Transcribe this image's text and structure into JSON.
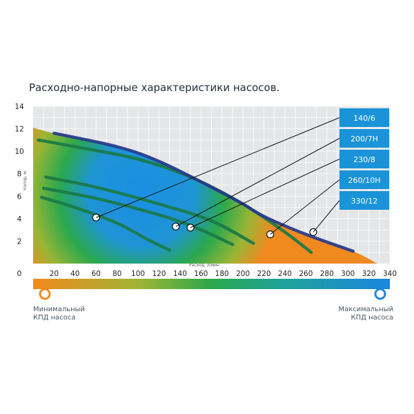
{
  "chart_data": {
    "type": "line",
    "title": "Расходно-напорные характеристики насосов.",
    "xlabel": "Расход, л/мин",
    "ylabel": "Напор, м",
    "xlim": [
      0,
      340
    ],
    "ylim": [
      0,
      14
    ],
    "x_ticks": [
      "0",
      "20",
      "40",
      "60",
      "80",
      "100",
      "120",
      "140",
      "160",
      "180",
      "200",
      "220",
      "240",
      "260",
      "280",
      "300",
      "320",
      "340"
    ],
    "y_ticks": [
      "2",
      "4",
      "6",
      "8",
      "10",
      "12",
      "14"
    ],
    "grid": true,
    "series": [
      {
        "name": "140/6",
        "x": [
          8,
          40,
          80,
          110,
          130
        ],
        "y": [
          5.9,
          5.0,
          3.6,
          2.1,
          1.2
        ]
      },
      {
        "name": "200/7H",
        "x": [
          10,
          60,
          110,
          150,
          190
        ],
        "y": [
          6.7,
          5.8,
          4.6,
          3.4,
          1.7
        ]
      },
      {
        "name": "230/8",
        "x": [
          12,
          60,
          120,
          170,
          210
        ],
        "y": [
          7.7,
          6.8,
          5.3,
          3.8,
          1.8
        ]
      },
      {
        "name": "260/10H",
        "x": [
          5,
          40,
          100,
          150,
          200,
          240,
          265
        ],
        "y": [
          11.0,
          10.4,
          9.3,
          7.7,
          5.3,
          2.8,
          1.0
        ]
      },
      {
        "name": "330/12",
        "x": [
          20,
          80,
          120,
          170,
          200,
          220,
          260,
          305
        ],
        "y": [
          11.6,
          10.4,
          9.1,
          6.8,
          5.3,
          4.2,
          2.6,
          1.1
        ]
      }
    ],
    "markers": [
      {
        "series": "140/6",
        "x": 60,
        "y": 4.1
      },
      {
        "series": "200/7H",
        "x": 136,
        "y": 3.3
      },
      {
        "series": "230/8",
        "x": 150,
        "y": 3.2
      },
      {
        "series": "260/10H",
        "x": 226,
        "y": 2.6
      },
      {
        "series": "330/12",
        "x": 267,
        "y": 2.8
      }
    ],
    "legend_position": "right",
    "colorbar": {
      "min_label": "Минимальный КПД насоса",
      "max_label": "Максимальный КПД насоса"
    }
  },
  "colors": {
    "low_efficiency": "#f0891f",
    "mid_efficiency": "#27a84a",
    "high_efficiency": "#1e8ede",
    "pump_curve": "#1a7a46",
    "max_curve": "#263a8c",
    "legend_box": "#1a93d8"
  },
  "captions": {
    "min_line1": "Минимальный",
    "min_line2": "КПД насоса",
    "max_line1": "Максимальный",
    "max_line2": "КПД насоса"
  }
}
